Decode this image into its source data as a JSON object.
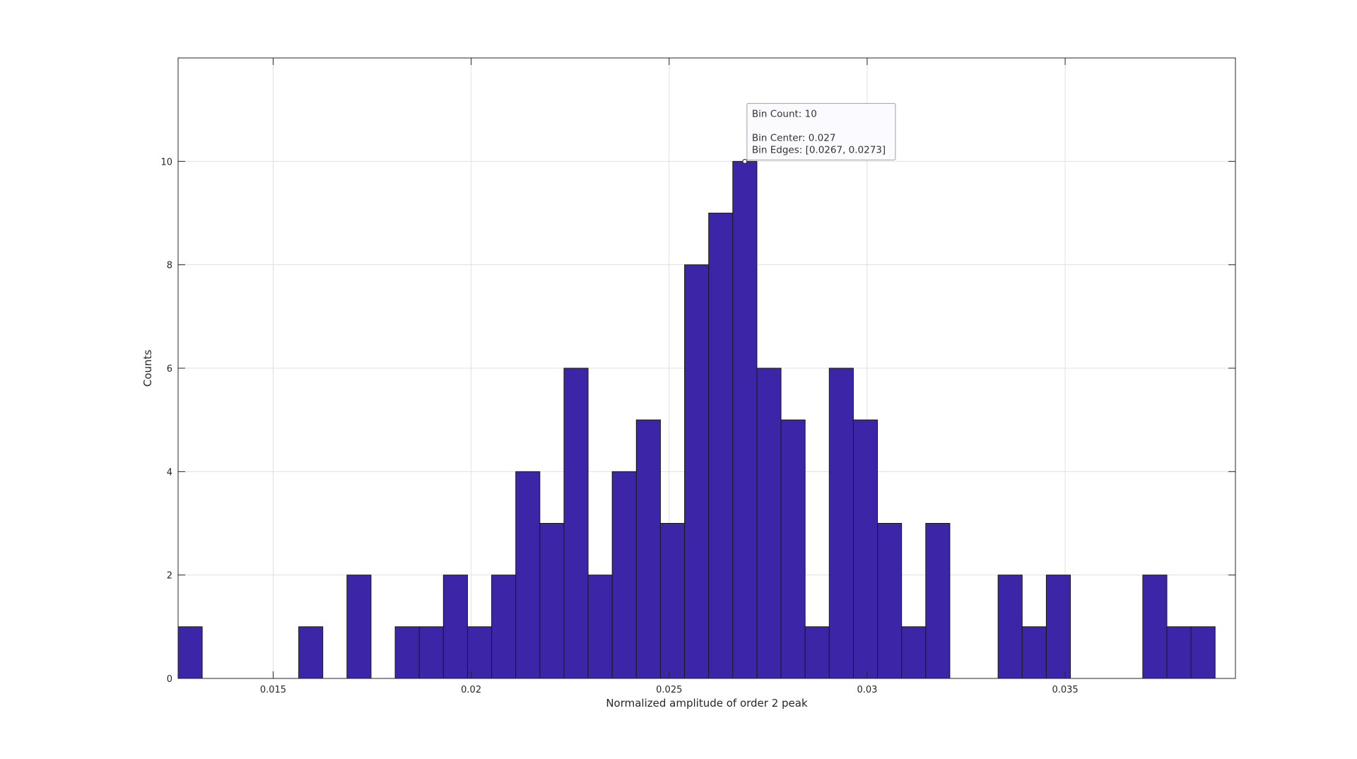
{
  "chart_data": {
    "type": "bar",
    "title": "",
    "xlabel": "Normalized amplitude of order 2 peak",
    "ylabel": "Counts",
    "xlim": [
      0.0126,
      0.0393
    ],
    "ylim": [
      0,
      12
    ],
    "bin_start": 0.0126,
    "bin_width": 0.000609,
    "counts": [
      1,
      0,
      0,
      0,
      0,
      1,
      0,
      2,
      0,
      1,
      1,
      2,
      1,
      2,
      4,
      3,
      6,
      2,
      4,
      5,
      3,
      8,
      9,
      10,
      6,
      5,
      1,
      6,
      5,
      3,
      1,
      3,
      0,
      0,
      2,
      1,
      2,
      0,
      0,
      0,
      2,
      1,
      1
    ],
    "x_ticks": [
      0.015,
      0.02,
      0.025,
      0.03,
      0.035
    ],
    "x_tick_labels": [
      "0.015",
      "0.02",
      "0.025",
      "0.03",
      "0.035"
    ],
    "y_ticks": [
      0,
      2,
      4,
      6,
      8,
      10
    ],
    "y_tick_labels": [
      "0",
      "2",
      "4",
      "6",
      "8",
      "10"
    ],
    "grid": true,
    "bar_color": "#3c26a7",
    "bar_edge_color": "#1a1a1a"
  },
  "datatip": {
    "bin_value": 10,
    "line1": "Bin Count: 10",
    "line2": "Bin Center: 0.027",
    "line3": "Bin Edges: [0.0267, 0.0273]"
  }
}
